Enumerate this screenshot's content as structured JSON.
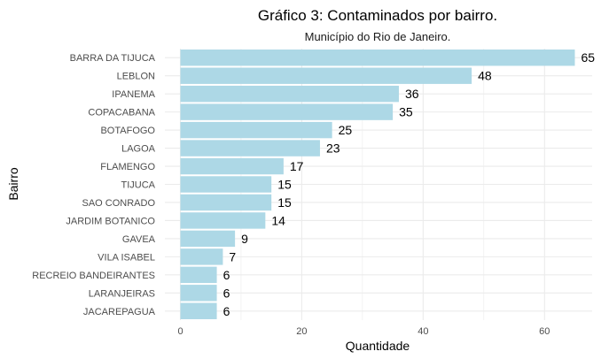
{
  "chart_data": {
    "type": "bar",
    "orientation": "horizontal",
    "title": "Gráfico 3: Contaminados por bairro.",
    "subtitle": "Município do Rio de Janeiro.",
    "xlabel": "Quantidade",
    "ylabel": "Bairro",
    "categories": [
      "BARRA DA TIJUCA",
      "LEBLON",
      "IPANEMA",
      "COPACABANA",
      "BOTAFOGO",
      "LAGOA",
      "FLAMENGO",
      "TIJUCA",
      "SAO CONRADO",
      "JARDIM BOTANICO",
      "GAVEA",
      "VILA ISABEL",
      "RECREIO BANDEIRANTES",
      "LARANJEIRAS",
      "JACAREPAGUA"
    ],
    "values": [
      65,
      48,
      36,
      35,
      25,
      23,
      17,
      15,
      15,
      14,
      9,
      7,
      6,
      6,
      6
    ],
    "data_labels": [
      "65",
      "48",
      "36",
      "35",
      "25",
      "23",
      "17",
      "15",
      "15",
      "14",
      "9",
      "7",
      "6",
      "6",
      "6"
    ],
    "xticks": [
      0,
      20,
      40,
      60
    ],
    "xtick_labels": [
      "0",
      "20",
      "40",
      "60"
    ],
    "xlim": [
      0,
      68
    ],
    "grid": true,
    "legend": "none",
    "colors": {
      "bar": "#add8e6",
      "grid": "#ebebeb",
      "text": "#000000",
      "axis_text": "#4d4d4d"
    }
  }
}
